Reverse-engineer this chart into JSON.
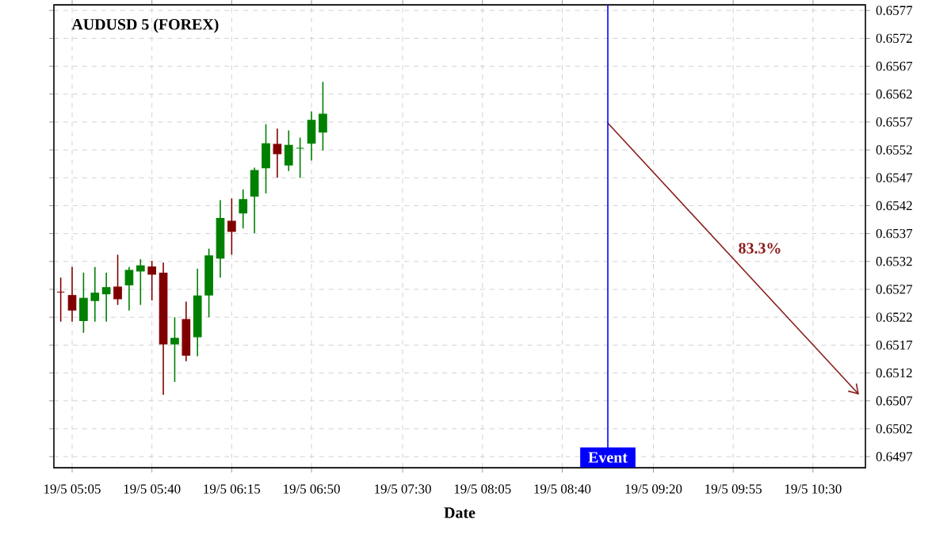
{
  "chart_data": {
    "type": "candlestick",
    "title": "AUDUSD 5 (FOREX)",
    "xlabel": "Date",
    "categories": [
      null,
      "19/5 05:05",
      null,
      null,
      null,
      null,
      null,
      null,
      "19/5 05:40",
      null,
      null,
      null,
      null,
      null,
      null,
      "19/5 06:15",
      null,
      null,
      null,
      null,
      null,
      null,
      "19/5 06:50",
      null,
      null,
      null,
      null,
      null,
      null,
      null,
      "19/5 07:30",
      null,
      null,
      null,
      null,
      null,
      null,
      "19/5 08:05",
      null,
      null,
      null,
      null,
      null,
      null,
      "19/5 08:40",
      null,
      null,
      null,
      null,
      null,
      null,
      null,
      "19/5 09:20",
      null,
      null,
      null,
      null,
      null,
      null,
      "19/5 09:55",
      null,
      null,
      null,
      null,
      null,
      null,
      "19/5 10:30",
      null,
      null,
      null,
      null
    ],
    "series": [
      {
        "type": "line",
        "values": [
          null,
          null,
          null,
          null,
          null,
          null,
          null,
          null,
          null,
          null,
          null,
          null,
          null,
          null,
          null,
          null,
          null,
          null,
          null,
          null,
          null,
          null,
          null,
          null,
          null,
          null,
          null,
          null,
          null,
          null,
          null,
          null,
          null,
          null,
          null,
          null,
          null,
          null,
          null,
          null,
          null,
          null,
          null,
          null,
          null,
          null,
          null,
          null,
          0.65568,
          null,
          null,
          null,
          null,
          null,
          null,
          null,
          null,
          null,
          null,
          null,
          null,
          null,
          null,
          null,
          null,
          null,
          null,
          null,
          null,
          null,
          0.65082
        ],
        "color": "#8b1a1a"
      },
      {
        "ohlc": [
          [
            0.65265,
            0.65291,
            0.65212,
            0.65265
          ],
          [
            0.65259,
            0.6531,
            0.65212,
            0.65233
          ],
          [
            0.65214,
            0.653,
            0.65192,
            0.65254
          ],
          [
            0.6525,
            0.6531,
            0.65212,
            0.65263
          ],
          [
            0.65262,
            0.653,
            0.65212,
            0.65273
          ],
          [
            0.65274,
            0.65332,
            0.65242,
            0.65253
          ],
          [
            0.65278,
            0.6531,
            0.65232,
            0.65304
          ],
          [
            0.65303,
            0.65324,
            0.65242,
            0.65312
          ],
          [
            0.6531,
            0.65321,
            0.6525,
            0.65297
          ],
          [
            0.65299,
            0.65318,
            0.65081,
            0.65172
          ],
          [
            0.65172,
            0.6522,
            0.65104,
            0.65182
          ],
          [
            0.65216,
            0.65248,
            0.65141,
            0.65152
          ],
          [
            0.65185,
            0.65307,
            0.6515,
            0.65258
          ],
          [
            0.6526,
            0.65343,
            0.6522,
            0.6533
          ],
          [
            0.65326,
            0.6543,
            0.65291,
            0.65397
          ],
          [
            0.65392,
            0.65433,
            0.65332,
            0.65374
          ],
          [
            0.65407,
            0.65449,
            0.65379,
            0.65431
          ],
          [
            0.65437,
            0.65488,
            0.65371,
            0.65483
          ],
          [
            0.65488,
            0.65566,
            0.65442,
            0.65531
          ],
          [
            0.6553,
            0.65558,
            0.6547,
            0.65513
          ],
          [
            0.65493,
            0.65555,
            0.65482,
            0.65528
          ],
          [
            0.65523,
            0.65542,
            0.6547,
            0.65523
          ],
          [
            0.65532,
            0.65589,
            0.65501,
            0.65573
          ],
          [
            0.65552,
            0.65642,
            0.65519,
            0.65584
          ],
          null,
          null,
          null,
          null,
          null,
          null,
          null,
          null,
          null,
          null,
          null,
          null,
          null,
          null,
          null,
          null,
          null,
          null,
          null,
          null,
          null,
          null,
          null,
          null,
          null,
          null,
          null,
          null,
          null,
          null,
          null,
          null,
          null,
          null,
          null,
          null,
          null,
          null,
          null,
          null,
          null,
          null,
          null,
          null,
          null,
          null,
          null
        ],
        "colors": [
          "#800000",
          "#800000",
          "#008000",
          "#008000",
          "#008000",
          "#800000",
          "#008000",
          "#008000",
          "#800000",
          "#800000",
          "#008000",
          "#800000",
          "#008000",
          "#008000",
          "#008000",
          "#800000",
          "#008000",
          "#008000",
          "#008000",
          "#800000",
          "#008000",
          "#008000",
          "#008000",
          "#008000",
          null,
          null,
          null,
          null,
          null,
          null,
          null,
          null,
          null,
          null,
          null,
          null,
          null,
          null,
          null,
          null,
          null,
          null,
          null,
          null,
          null,
          null,
          null,
          null,
          null,
          null,
          null,
          null,
          null,
          null,
          null,
          null,
          null,
          null,
          null,
          null,
          null,
          null,
          null,
          null,
          null,
          null,
          null,
          null,
          null,
          null,
          null
        ]
      }
    ],
    "ylim": [
      0.6495,
      0.6578
    ],
    "yticks": [
      0.6497,
      0.6502,
      0.6507,
      0.6512,
      0.6517,
      0.6522,
      0.6527,
      0.6532,
      0.6537,
      0.6542,
      0.6547,
      0.6552,
      0.6557,
      0.6562,
      0.6567,
      0.6572,
      0.6577
    ],
    "annotations": [
      "Event",
      "83.3%"
    ],
    "grid": true
  }
}
